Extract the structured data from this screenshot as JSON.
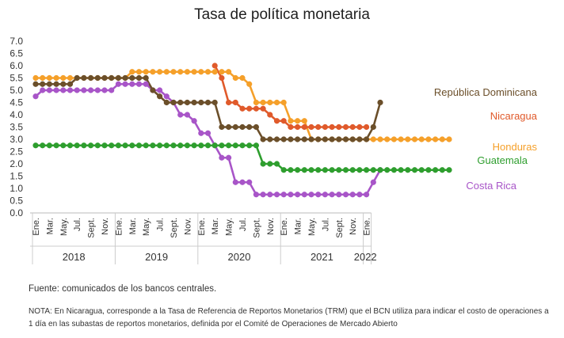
{
  "chart_data": {
    "type": "line",
    "title": "Tasa de política monetaria",
    "xlabel": "",
    "ylabel": "",
    "ylim": [
      0,
      7
    ],
    "yticks": [
      "0.0",
      "0.5",
      "1.0",
      "1.5",
      "2.0",
      "2.5",
      "3.0",
      "3.5",
      "4.0",
      "4.5",
      "5.0",
      "5.5",
      "6.0",
      "6.5",
      "7.0"
    ],
    "grid": false,
    "x_tick_labels": [
      "Ene.",
      "Mar.",
      "May.",
      "Jul.",
      "Sept.",
      "Nov.",
      "Ene.",
      "Mar.",
      "May.",
      "Jul.",
      "Sept.",
      "Nov.",
      "Ene.",
      "Mar.",
      "May.",
      "Jul.",
      "Sept.",
      "Nov.",
      "Ene.",
      "Mar.",
      "May.",
      "Jul.",
      "Sept.",
      "Nov.",
      "Ene."
    ],
    "year_labels": [
      "2018",
      "2019",
      "2020",
      "2021",
      "2022"
    ],
    "series": [
      {
        "name": "República Dominicana",
        "color": "#6b4f2a",
        "start": "2018-01",
        "values": [
          5.25,
          5.25,
          5.25,
          5.25,
          5.25,
          5.25,
          5.5,
          5.5,
          5.5,
          5.5,
          5.5,
          5.5,
          5.5,
          5.5,
          5.5,
          5.5,
          5.5,
          5.0,
          4.75,
          4.5,
          4.5,
          4.5,
          4.5,
          4.5,
          4.5,
          4.5,
          4.5,
          3.5,
          3.5,
          3.5,
          3.5,
          3.5,
          3.5,
          3.0,
          3.0,
          3.0,
          3.0,
          3.0,
          3.0,
          3.0,
          3.0,
          3.0,
          3.0,
          3.0,
          3.0,
          3.0,
          3.0,
          3.0,
          3.0,
          3.5,
          4.5
        ]
      },
      {
        "name": "Nicaragua",
        "color": "#e05a2b",
        "start": "2020-03",
        "values": [
          6.0,
          5.5,
          4.5,
          4.5,
          4.25,
          4.25,
          4.25,
          4.25,
          4.0,
          3.75,
          3.75,
          3.5,
          3.5,
          3.5,
          3.5,
          3.5,
          3.5,
          3.5,
          3.5,
          3.5,
          3.5,
          3.5,
          3.5
        ]
      },
      {
        "name": "Honduras",
        "color": "#f5a02a",
        "start": "2018-01",
        "values": [
          5.5,
          5.5,
          5.5,
          5.5,
          5.5,
          5.5,
          5.5,
          5.5,
          5.5,
          5.5,
          5.5,
          5.5,
          5.5,
          5.5,
          5.75,
          5.75,
          5.75,
          5.75,
          5.75,
          5.75,
          5.75,
          5.75,
          5.75,
          5.75,
          5.75,
          5.75,
          5.75,
          5.75,
          5.75,
          5.5,
          5.5,
          5.25,
          4.5,
          4.5,
          4.5,
          4.5,
          4.5,
          3.75,
          3.75,
          3.75,
          3.0,
          3.0,
          3.0,
          3.0,
          3.0,
          3.0,
          3.0,
          3.0,
          3.0,
          3.0,
          3.0,
          3.0,
          3.0,
          3.0,
          3.0,
          3.0,
          3.0,
          3.0,
          3.0,
          3.0,
          3.0
        ]
      },
      {
        "name": "Guatemala",
        "color": "#2e9e2e",
        "start": "2018-01",
        "values": [
          2.75,
          2.75,
          2.75,
          2.75,
          2.75,
          2.75,
          2.75,
          2.75,
          2.75,
          2.75,
          2.75,
          2.75,
          2.75,
          2.75,
          2.75,
          2.75,
          2.75,
          2.75,
          2.75,
          2.75,
          2.75,
          2.75,
          2.75,
          2.75,
          2.75,
          2.75,
          2.75,
          2.75,
          2.75,
          2.75,
          2.75,
          2.75,
          2.75,
          2.0,
          2.0,
          2.0,
          1.75,
          1.75,
          1.75,
          1.75,
          1.75,
          1.75,
          1.75,
          1.75,
          1.75,
          1.75,
          1.75,
          1.75,
          1.75,
          1.75,
          1.75,
          1.75,
          1.75,
          1.75,
          1.75,
          1.75,
          1.75,
          1.75,
          1.75,
          1.75,
          1.75
        ]
      },
      {
        "name": "Costa Rica",
        "color": "#a855c8",
        "start": "2018-01",
        "values": [
          4.75,
          5.0,
          5.0,
          5.0,
          5.0,
          5.0,
          5.0,
          5.0,
          5.0,
          5.0,
          5.0,
          5.0,
          5.25,
          5.25,
          5.25,
          5.25,
          5.25,
          5.0,
          5.0,
          4.75,
          4.5,
          4.0,
          4.0,
          3.75,
          3.25,
          3.25,
          2.75,
          2.25,
          2.25,
          1.25,
          1.25,
          1.25,
          0.75,
          0.75,
          0.75,
          0.75,
          0.75,
          0.75,
          0.75,
          0.75,
          0.75,
          0.75,
          0.75,
          0.75,
          0.75,
          0.75,
          0.75,
          0.75,
          0.75,
          1.25,
          1.75
        ]
      }
    ]
  },
  "source_text": "Fuente: comunicados de los bancos centrales.",
  "footnote_text": "NOTA: En Nicaragua, corresponde a la Tasa de Referencia de Reportos Monetarios (TRM) que el BCN utiliza para indicar el costo de operaciones a 1 día en las subastas de reportos monetarios, definida por el Comité de Operaciones de Mercado Abierto"
}
